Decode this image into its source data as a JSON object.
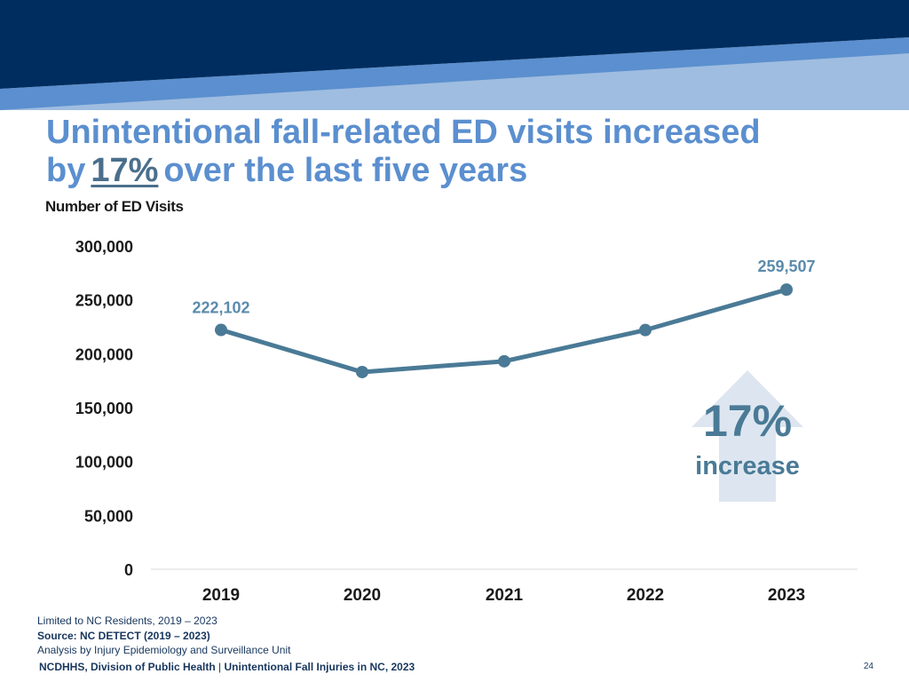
{
  "slide": {
    "title_line1": "Unintentional fall-related ED visits increased",
    "title_pre": "by",
    "title_highlight": "17%",
    "title_post": "over the last five years",
    "y_axis_label": "Number of ED Visits",
    "page_number": "24"
  },
  "colors": {
    "banner_dark": "#002d5f",
    "banner_mid": "#5b8fcf",
    "banner_light": "#9fbde0",
    "line": "#4a7a96",
    "arrow": "#dde6f0",
    "title": "#5b8fcf"
  },
  "chart_data": {
    "type": "line",
    "categories": [
      "2019",
      "2020",
      "2021",
      "2022",
      "2023"
    ],
    "series": [
      {
        "name": "Number of ED Visits",
        "values": [
          222102,
          183000,
          193000,
          222000,
          259507
        ]
      }
    ],
    "ylim": [
      0,
      300000
    ],
    "yticks": [
      0,
      50000,
      100000,
      150000,
      200000,
      250000,
      300000
    ],
    "ytick_labels": [
      "0",
      "50,000",
      "100,000",
      "150,000",
      "200,000",
      "250,000",
      "300,000"
    ],
    "data_labels": [
      {
        "index": 0,
        "text": "222,102"
      },
      {
        "index": 4,
        "text": "259,507"
      }
    ],
    "xlabel": "",
    "ylabel": "Number of ED Visits",
    "grid": false,
    "annotation": {
      "value_text": "17%",
      "caption": "increase"
    }
  },
  "footnotes": {
    "line1": "Limited to NC Residents, 2019 – 2023",
    "line2": "Source: NC DETECT (2019 – 2023)",
    "line3": "Analysis by Injury Epidemiology and Surveillance Unit"
  },
  "footer": {
    "org": "NCDHHS, Division of Public Health",
    "separator": "|",
    "topic": "Unintentional Fall Injuries in NC, 2023"
  }
}
